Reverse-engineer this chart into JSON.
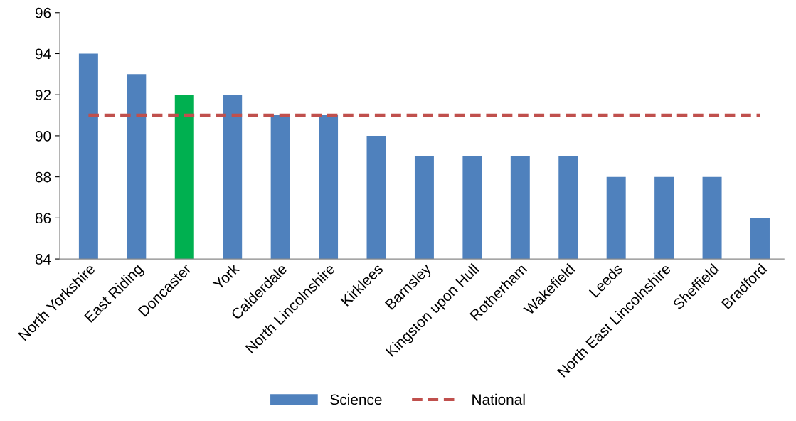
{
  "chart_data": {
    "type": "bar",
    "categories": [
      "North Yorkshire",
      "East Riding",
      "Doncaster",
      "York",
      "Calderdale",
      "North Lincolnshire",
      "Kirklees",
      "Barnsley",
      "Kingston upon Hull",
      "Rotherham",
      "Wakefield",
      "Leeds",
      "North East Lincolnshire",
      "Sheffield",
      "Bradford"
    ],
    "series": [
      {
        "name": "Science",
        "color": "#4f81bd",
        "colors": [
          "#4f81bd",
          "#4f81bd",
          "#00b050",
          "#4f81bd",
          "#4f81bd",
          "#4f81bd",
          "#4f81bd",
          "#4f81bd",
          "#4f81bd",
          "#4f81bd",
          "#4f81bd",
          "#4f81bd",
          "#4f81bd",
          "#4f81bd",
          "#4f81bd"
        ],
        "values": [
          94,
          93,
          92,
          92,
          91,
          91,
          90,
          89,
          89,
          89,
          89,
          88,
          88,
          88,
          86
        ]
      },
      {
        "name": "National",
        "type": "line",
        "color": "#c0504d",
        "line_style": "dashed",
        "values": [
          91,
          91,
          91,
          91,
          91,
          91,
          91,
          91,
          91,
          91,
          91,
          91,
          91,
          91,
          91
        ]
      }
    ],
    "ylim": [
      84,
      96
    ],
    "yticks": [
      84,
      86,
      88,
      90,
      92,
      94,
      96
    ],
    "grid": false,
    "legend": "bottom"
  }
}
